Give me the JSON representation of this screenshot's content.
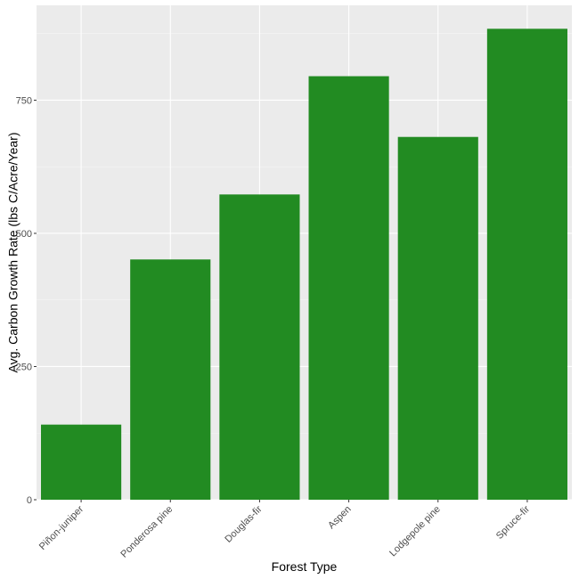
{
  "chart_data": {
    "type": "bar",
    "categories": [
      "Piñon-juniper",
      "Ponderosa pine",
      "Douglas-fir",
      "Aspen",
      "Lodgepole pine",
      "Spruce-fir"
    ],
    "values": [
      141,
      451,
      573,
      795,
      681,
      884
    ],
    "xlabel": "Forest Type",
    "ylabel": "Avg. Carbon Growth Rate (lbs C/Acre/Year)",
    "ylim": [
      0,
      928
    ],
    "yticks": [
      0,
      250,
      500,
      750
    ],
    "ytick_labels": [
      "0",
      "250",
      "500",
      "750"
    ],
    "grid": true,
    "colors": {
      "bar": "#228b22",
      "panel": "#ebebeb",
      "grid_major": "#ffffff",
      "grid_minor": "#f5f5f5"
    }
  }
}
